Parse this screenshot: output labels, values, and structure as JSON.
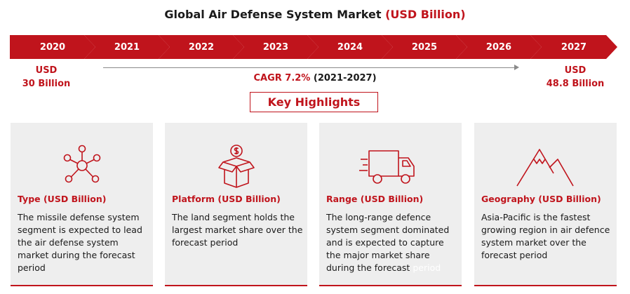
{
  "header": {
    "title": "Global Air Defense System Market",
    "title_unit": "(USD Billion)"
  },
  "timeline": {
    "years": [
      "2020",
      "2021",
      "2022",
      "2023",
      "2024",
      "2025",
      "2026",
      "2027"
    ],
    "start_value_line1": "USD",
    "start_value_line2": "30 Billion",
    "end_value_line1": "USD",
    "end_value_line2": "48.8 Billion",
    "cagr_label": "CAGR 7.2%",
    "cagr_period": "(2021-2027)"
  },
  "highlights": {
    "label": "Key Highlights",
    "cards": [
      {
        "icon": "network-hub-icon",
        "title": "Type (USD Billion)",
        "description": "The missile defense system segment is expected to lead the air defense system market during the forecast period"
      },
      {
        "icon": "money-box-icon",
        "title": "Platform (USD Billion)",
        "description": "The land segment holds the largest market share over the forecast period"
      },
      {
        "icon": "delivery-truck-icon",
        "title": "Range (USD Billion)",
        "description": "The long-range defence system segment dominated and is expected to capture the major market share during the forecast",
        "description_tail": "period"
      },
      {
        "icon": "mountains-icon",
        "title": "Geography (USD Billion)",
        "description": "Asia-Pacific is the fastest growing region in air defence system market over the forecast period"
      }
    ]
  },
  "colors": {
    "accent": "#c0141c",
    "card_bg": "#eeeeee",
    "text": "#1a1a1a"
  }
}
